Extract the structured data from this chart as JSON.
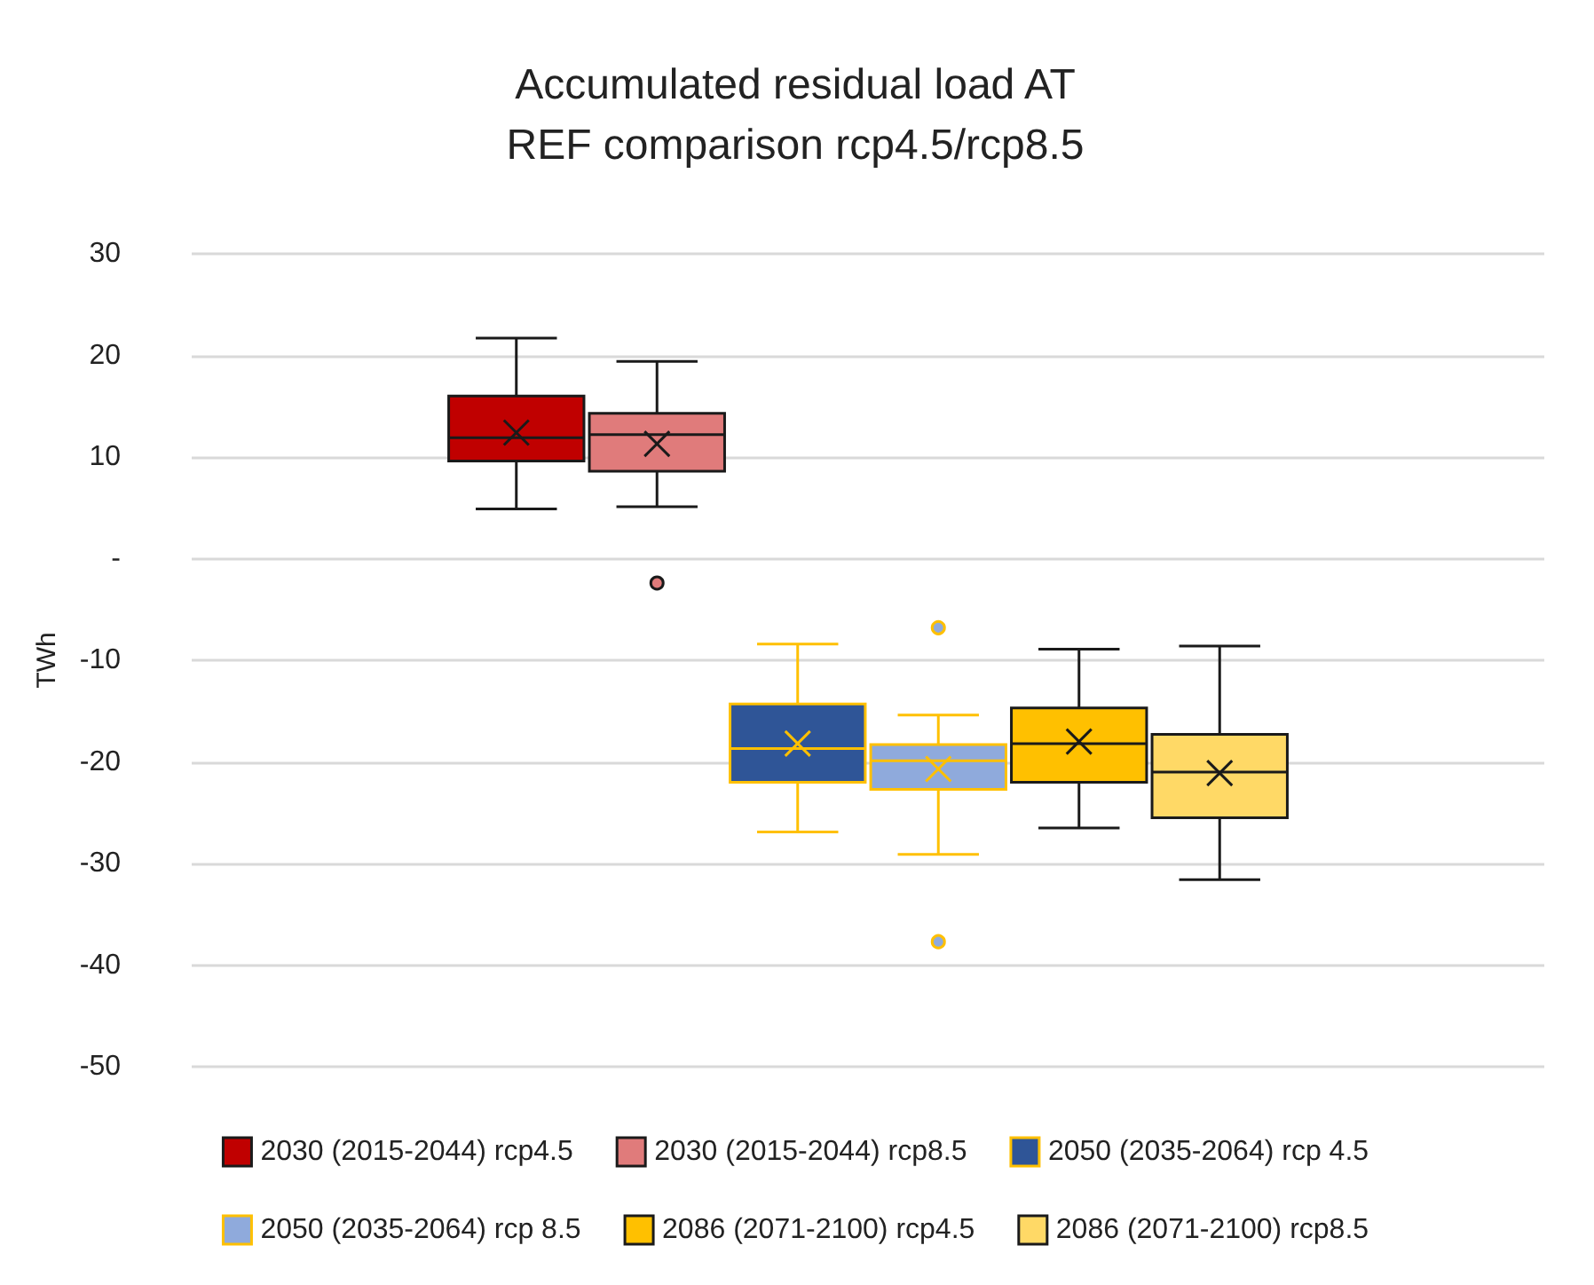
{
  "chart_data": {
    "type": "box",
    "title": "Accumulated residual load AT\nREF comparison rcp4.5/rcp8.5",
    "ylabel": "TWh",
    "categories": [
      null
    ],
    "ylim": [
      -50,
      30
    ],
    "yticks": [
      -50,
      -40,
      -30,
      -20,
      -10,
      {
        "value": 0,
        "label": "-"
      },
      10,
      20,
      30
    ],
    "grid": "y",
    "legend": "bottom",
    "series": [
      {
        "name": "2030 (2015-2044) rcp4.5",
        "color": "#c00000",
        "boxes": [
          {
            "low": 4.9,
            "q1": 9.6,
            "median": 11.9,
            "q3": 16.0,
            "high": 21.7,
            "mean": 12.4
          }
        ]
      },
      {
        "name": "2030 (2015-2044) rcp8.5",
        "color": "#e07b7b",
        "boxes": [
          {
            "low": 5.1,
            "q1": 8.6,
            "median": 12.2,
            "q3": 14.3,
            "high": 19.4,
            "mean": 11.3,
            "outliers": [
              -2.4
            ]
          }
        ]
      },
      {
        "name": "2050 (2035-2064) rcp 4.5",
        "color": "#2f5597",
        "boxes": [
          {
            "low": -26.9,
            "q1": -22.0,
            "median": -18.7,
            "q3": -14.3,
            "high": -8.4,
            "mean": -18.2
          }
        ]
      },
      {
        "name": "2050 (2035-2064) rcp 8.5",
        "color": "#8faadc",
        "boxes": [
          {
            "low": -29.1,
            "q1": -22.7,
            "median": -19.9,
            "q3": -18.3,
            "high": -15.4,
            "mean": -20.7,
            "outliers": [
              -6.8,
              -37.7
            ]
          }
        ]
      },
      {
        "name": "2086 (2071-2100) rcp4.5",
        "color": "#ffc000",
        "boxes": [
          {
            "low": -26.5,
            "q1": -22.0,
            "median": -18.2,
            "q3": -14.7,
            "high": -8.9,
            "mean": -18.0
          }
        ]
      },
      {
        "name": "2086 (2071-2100) rcp8.5",
        "color": "#ffd966",
        "boxes": [
          {
            "low": -31.6,
            "q1": -25.5,
            "median": -21.0,
            "q3": -17.3,
            "high": -8.6,
            "mean": -21.1
          }
        ]
      }
    ]
  }
}
